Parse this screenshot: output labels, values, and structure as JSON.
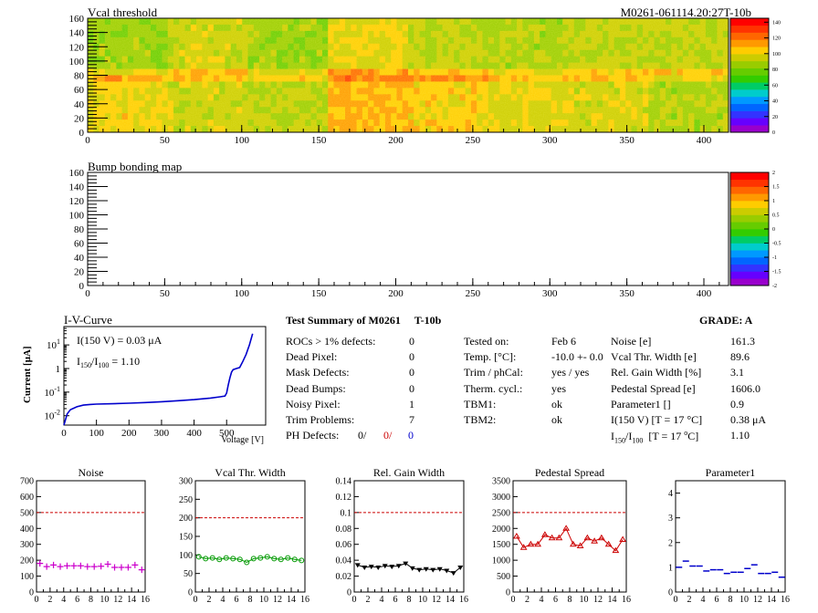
{
  "module_id": "M0261-061114.20:27T-10b",
  "vcal_map": {
    "title": "Vcal threshold",
    "x_ticks": [
      "0",
      "50",
      "100",
      "150",
      "200",
      "250",
      "300",
      "350",
      "400"
    ],
    "y_ticks": [
      "0",
      "20",
      "40",
      "60",
      "80",
      "100",
      "120",
      "140",
      "160"
    ],
    "palette_ticks": [
      "0",
      "20",
      "40",
      "60",
      "80",
      "100",
      "120",
      "140"
    ],
    "xlim": [
      0,
      416
    ],
    "ylim": [
      0,
      160
    ],
    "zlim": [
      0,
      145
    ]
  },
  "bump_map": {
    "title": "Bump bonding map",
    "x_ticks": [
      "0",
      "50",
      "100",
      "150",
      "200",
      "250",
      "300",
      "350",
      "400"
    ],
    "y_ticks": [
      "0",
      "20",
      "40",
      "60",
      "80",
      "100",
      "120",
      "140",
      "160"
    ],
    "palette_ticks": [
      "-2",
      "-1.5",
      "-1",
      "-0.5",
      "0",
      "0.5",
      "1",
      "1.5",
      "2"
    ],
    "zlim": [
      -2,
      2
    ]
  },
  "iv_curve": {
    "title": "I-V-Curve",
    "ylabel": "Current [μA]",
    "xlabel": "Voltage [V]",
    "x_ticks": [
      "0",
      "100",
      "200",
      "300",
      "400",
      "500"
    ],
    "xlim": [
      0,
      620
    ],
    "ylim_log": [
      0.004,
      60
    ],
    "i150": "I(150 V) = 0.03 μA",
    "ratio": "1.10",
    "points": [
      [
        0,
        0.004
      ],
      [
        10,
        0.012
      ],
      [
        20,
        0.018
      ],
      [
        40,
        0.024
      ],
      [
        60,
        0.028
      ],
      [
        80,
        0.03
      ],
      [
        100,
        0.031
      ],
      [
        150,
        0.032
      ],
      [
        200,
        0.034
      ],
      [
        250,
        0.036
      ],
      [
        300,
        0.039
      ],
      [
        350,
        0.043
      ],
      [
        400,
        0.048
      ],
      [
        450,
        0.056
      ],
      [
        480,
        0.063
      ],
      [
        495,
        0.068
      ],
      [
        500,
        0.09
      ],
      [
        505,
        0.2
      ],
      [
        510,
        0.4
      ],
      [
        515,
        0.7
      ],
      [
        520,
        0.9
      ],
      [
        530,
        1.0
      ],
      [
        540,
        1.1
      ],
      [
        550,
        2.0
      ],
      [
        560,
        4.0
      ],
      [
        570,
        10
      ],
      [
        580,
        30
      ]
    ]
  },
  "summary": {
    "title_prefix": "Test Summary of M0261",
    "title_suffix": "T-10b",
    "grade": "GRADE:  A",
    "left_rows": [
      {
        "label": "ROCs > 1% defects:",
        "value": "0"
      },
      {
        "label": "Dead Pixel:",
        "value": "0"
      },
      {
        "label": "Mask Defects:",
        "value": "0"
      },
      {
        "label": "Dead Bumps:",
        "value": "0"
      },
      {
        "label": "Noisy Pixel:",
        "value": "1"
      },
      {
        "label": "Trim Problems:",
        "value": "7"
      }
    ],
    "ph_label": "PH Defects:",
    "ph_values": [
      {
        "value": "0/",
        "color": "#000000"
      },
      {
        "value": "0/",
        "color": "#cc0000"
      },
      {
        "value": "0",
        "color": "#0000cc"
      }
    ],
    "mid_rows": [
      {
        "label": "Tested on:",
        "value": "Feb 6"
      },
      {
        "label": "Temp. [°C]:",
        "value": "-10.0 +- 0.0"
      },
      {
        "label": "Trim / phCal:",
        "value": "yes / yes"
      },
      {
        "label": "Therm. cycl.:",
        "value": "yes"
      },
      {
        "label": "TBM1:",
        "value": "ok"
      },
      {
        "label": "TBM2:",
        "value": "ok"
      }
    ],
    "right_rows": [
      {
        "label": "Noise [e]",
        "value": "161.3"
      },
      {
        "label": "Vcal Thr. Width [e]",
        "value": "89.6"
      },
      {
        "label": "Rel. Gain Width [%]",
        "value": "3.1"
      },
      {
        "label": "Pedestal Spread [e]",
        "value": "1606.0"
      },
      {
        "label": "Parameter1 []",
        "value": "0.9"
      },
      {
        "label": "I(150 V) [T = 17 °C]",
        "value": "0.38 μA"
      },
      {
        "label": "I150/I100  [T = 17 °C]",
        "value": "1.10"
      }
    ]
  },
  "chart_data": [
    {
      "type": "scatter",
      "title": "Noise",
      "x": [
        0,
        1,
        2,
        3,
        4,
        5,
        6,
        7,
        8,
        9,
        10,
        11,
        12,
        13,
        14,
        15
      ],
      "values": [
        180,
        160,
        170,
        160,
        165,
        165,
        165,
        160,
        160,
        162,
        175,
        155,
        155,
        155,
        170,
        140
      ],
      "ylim": [
        0,
        700
      ],
      "y_ticks": [
        0,
        100,
        200,
        300,
        400,
        500,
        600,
        700
      ],
      "cut": 500,
      "color": "#cc00cc",
      "marker": "cross"
    },
    {
      "type": "line",
      "title": "Vcal Thr. Width",
      "x": [
        0,
        1,
        2,
        3,
        4,
        5,
        6,
        7,
        8,
        9,
        10,
        11,
        12,
        13,
        14,
        15
      ],
      "values": [
        95,
        90,
        92,
        88,
        92,
        90,
        88,
        80,
        90,
        92,
        95,
        90,
        88,
        92,
        88,
        85
      ],
      "ylim": [
        0,
        300
      ],
      "y_ticks": [
        0,
        50,
        100,
        150,
        200,
        250,
        300
      ],
      "cut": 200,
      "color": "#009900",
      "marker": "circle"
    },
    {
      "type": "line",
      "title": "Rel. Gain Width",
      "x": [
        0,
        1,
        2,
        3,
        4,
        5,
        6,
        7,
        8,
        9,
        10,
        11,
        12,
        13,
        14,
        15
      ],
      "values": [
        0.034,
        0.031,
        0.032,
        0.031,
        0.033,
        0.032,
        0.033,
        0.036,
        0.03,
        0.028,
        0.029,
        0.028,
        0.029,
        0.027,
        0.024,
        0.031
      ],
      "ylim": [
        0,
        0.14
      ],
      "y_ticks": [
        0,
        0.02,
        0.04,
        0.06,
        0.08,
        0.1,
        0.12,
        0.14
      ],
      "cut": 0.1,
      "color": "#000000",
      "marker": "triangle-down"
    },
    {
      "type": "line",
      "title": "Pedestal Spread",
      "x": [
        0,
        1,
        2,
        3,
        4,
        5,
        6,
        7,
        8,
        9,
        10,
        11,
        12,
        13,
        14,
        15
      ],
      "values": [
        1750,
        1400,
        1500,
        1500,
        1800,
        1700,
        1700,
        2000,
        1500,
        1450,
        1700,
        1600,
        1700,
        1500,
        1300,
        1650
      ],
      "ylim": [
        0,
        3500
      ],
      "y_ticks": [
        0,
        500,
        1000,
        1500,
        2000,
        2500,
        3000,
        3500
      ],
      "cut": 2500,
      "color": "#cc0000",
      "marker": "triangle-up"
    },
    {
      "type": "scatter",
      "title": "Parameter1",
      "x": [
        0,
        1,
        2,
        3,
        4,
        5,
        6,
        7,
        8,
        9,
        10,
        11,
        12,
        13,
        14,
        15
      ],
      "values": [
        1.0,
        1.25,
        1.05,
        1.05,
        0.85,
        0.9,
        0.9,
        0.75,
        0.8,
        0.8,
        0.95,
        1.1,
        0.75,
        0.75,
        0.8,
        0.6
      ],
      "ylim": [
        0,
        4.5
      ],
      "y_ticks": [
        0,
        1,
        2,
        3,
        4
      ],
      "cut": null,
      "color": "#0000cc",
      "marker": "hbar"
    }
  ],
  "x_ticks_small": [
    "0",
    "2",
    "4",
    "6",
    "8",
    "10",
    "12",
    "14",
    "16"
  ]
}
